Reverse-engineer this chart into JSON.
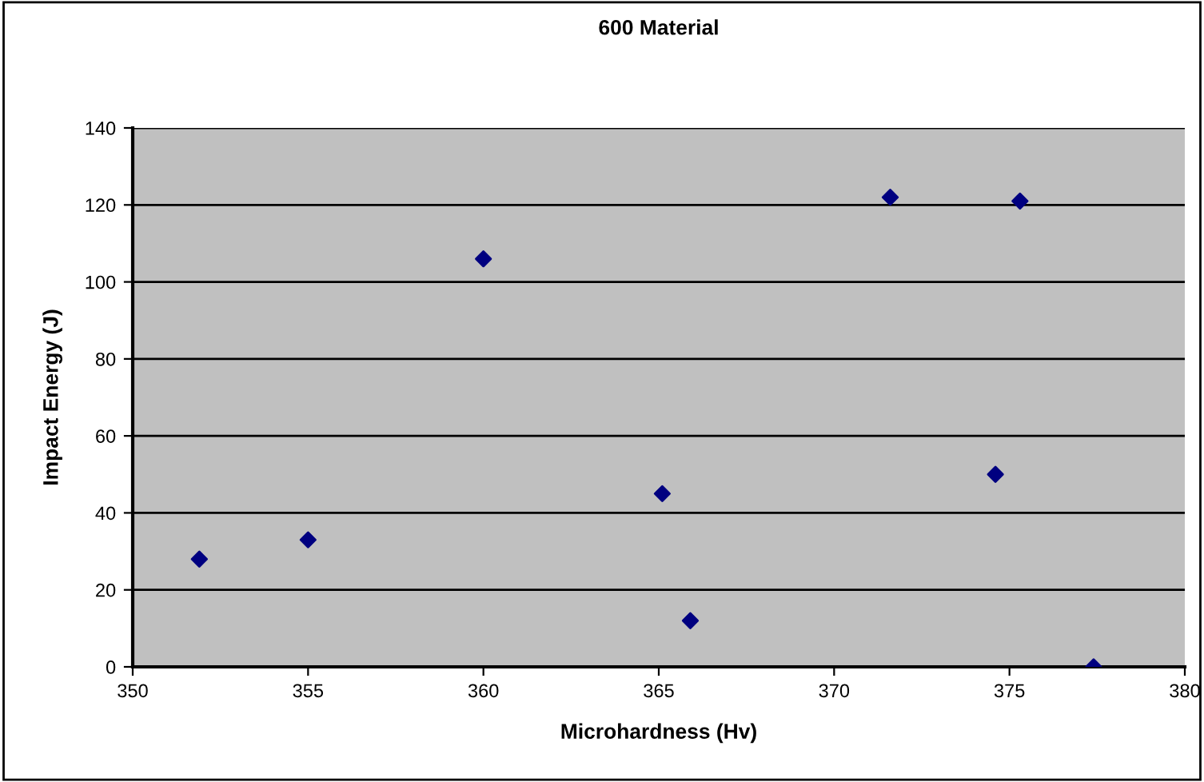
{
  "chart_data": {
    "type": "scatter",
    "title": "600 Material",
    "xlabel": "Microhardness (Hv)",
    "ylabel": "Impact Energy (J)",
    "x": [
      351.9,
      355.0,
      360.0,
      365.1,
      365.9,
      371.6,
      375.3,
      374.6,
      377.4
    ],
    "series": [
      {
        "color": "#000080",
        "values": [
          28,
          33,
          106,
          45,
          12,
          122,
          121,
          50,
          0
        ]
      }
    ],
    "xlim": [
      350,
      380
    ],
    "xticks": [
      350,
      355,
      360,
      365,
      370,
      375,
      380
    ],
    "ylim": [
      0,
      140
    ],
    "yticks": [
      0,
      20,
      40,
      60,
      80,
      100,
      120,
      140
    ],
    "grid": "y",
    "marker": "diamond",
    "legend": false
  }
}
